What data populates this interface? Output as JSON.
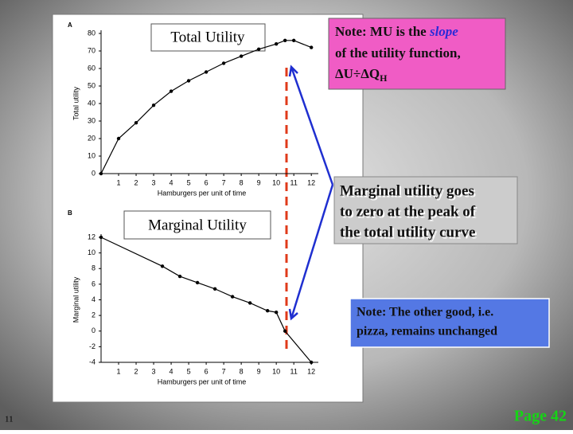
{
  "chart_data": [
    {
      "type": "line",
      "panel_label": "A",
      "title": "Total Utility",
      "x_label": "Hamburgers per unit of time",
      "y_label": "Total utility",
      "x": [
        0,
        1,
        2,
        3,
        4,
        5,
        6,
        7,
        8,
        9,
        10,
        10.5,
        11,
        12
      ],
      "values": [
        0,
        20,
        29,
        39,
        47,
        53,
        58,
        63,
        67,
        71,
        74,
        76,
        76,
        72
      ],
      "xlim": [
        0,
        12.4
      ],
      "ylim": [
        0,
        80
      ],
      "xticks": [
        1,
        2,
        3,
        4,
        5,
        6,
        7,
        8,
        9,
        10,
        11,
        12
      ],
      "yticks": [
        0,
        10,
        20,
        30,
        40,
        50,
        60,
        70,
        80
      ],
      "color": "#000000",
      "markers": true
    },
    {
      "type": "line",
      "panel_label": "B",
      "title": "Marginal Utility",
      "x_label": "Hamburgers per unit of time",
      "y_label": "Marginal utility",
      "x": [
        0,
        3.5,
        4.5,
        5.5,
        6.5,
        7.5,
        8.5,
        9.5,
        10,
        10.5,
        12
      ],
      "values": [
        12,
        8.3,
        7,
        6.2,
        5.4,
        4.4,
        3.6,
        2.6,
        2.4,
        0,
        -4
      ],
      "xlim": [
        0,
        12.4
      ],
      "ylim": [
        -4,
        12
      ],
      "xticks": [
        1,
        2,
        3,
        4,
        5,
        6,
        7,
        8,
        9,
        10,
        11,
        12
      ],
      "yticks": [
        -4,
        -2,
        0,
        2,
        4,
        6,
        8,
        10,
        12
      ],
      "color": "#000000",
      "markers": true
    }
  ],
  "notes": {
    "slope_note": {
      "line1a": "Note:  MU is the ",
      "line1b": "slope",
      "line2": "of the utility function,",
      "line3a": "ΔU÷ΔQ",
      "line3b": "H"
    },
    "zero_note": [
      "Marginal utility goes",
      "to zero at the peak of",
      "the total utility curve"
    ],
    "other_good_note": [
      "Note:  The other good, i.e.",
      "pizza, remains unchanged"
    ]
  },
  "slide_number": "11",
  "page": "Page 42"
}
